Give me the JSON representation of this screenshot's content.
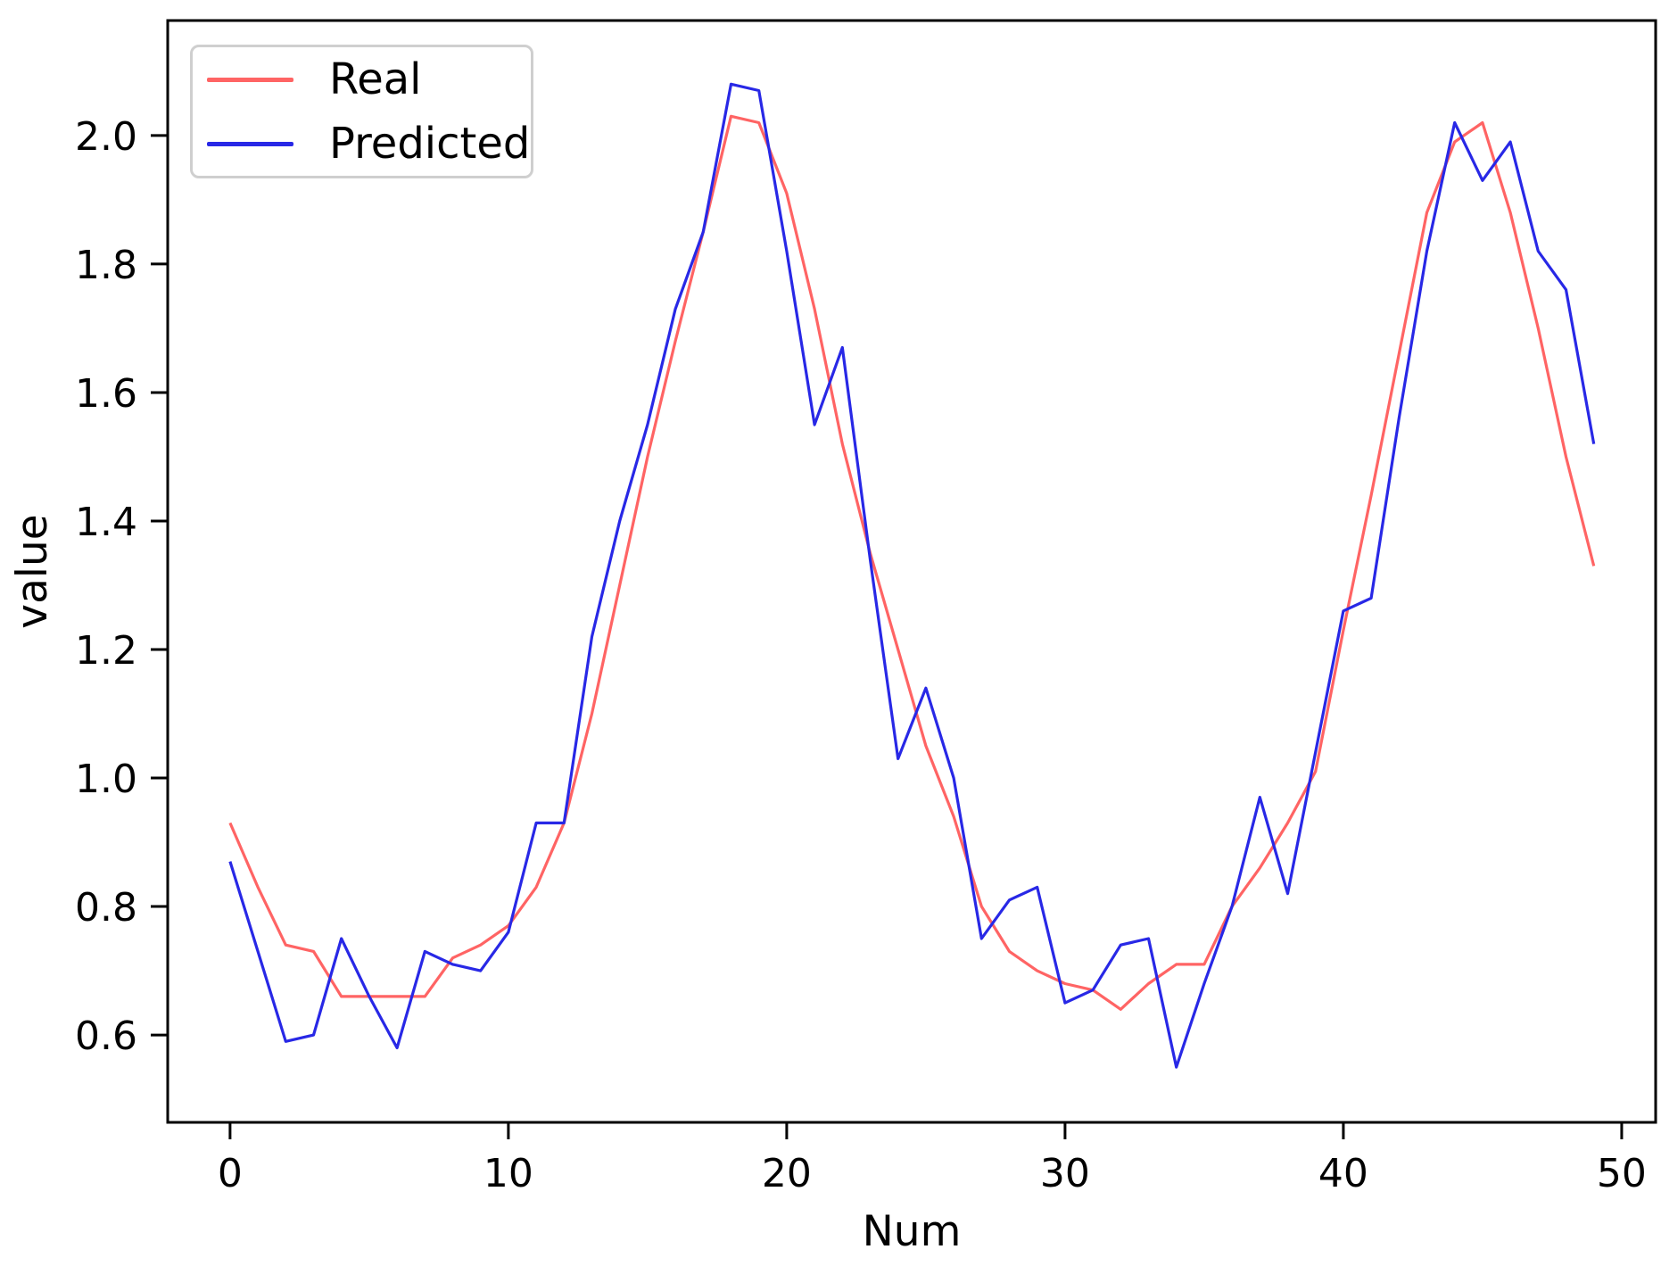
{
  "chart_data": {
    "type": "line",
    "title": "",
    "xlabel": "Num",
    "ylabel": "value",
    "x_ticks": [
      0,
      10,
      20,
      30,
      40,
      50
    ],
    "y_ticks": [
      0.6,
      0.8,
      1.0,
      1.2,
      1.4,
      1.6,
      1.8,
      2.0
    ],
    "xlim": [
      -2.24,
      51.22
    ],
    "ylim": [
      0.464,
      2.179
    ],
    "grid": false,
    "legend": {
      "position": "upper-left",
      "entries": [
        {
          "label": "Real",
          "color": "#ff6464"
        },
        {
          "label": "Predicted",
          "color": "#2828e6"
        }
      ]
    },
    "x": [
      0,
      1,
      2,
      3,
      4,
      5,
      6,
      7,
      8,
      9,
      10,
      11,
      12,
      13,
      14,
      15,
      16,
      17,
      18,
      19,
      20,
      21,
      22,
      23,
      24,
      25,
      26,
      27,
      28,
      29,
      30,
      31,
      32,
      33,
      34,
      35,
      36,
      37,
      38,
      39,
      40,
      41,
      42,
      43,
      44,
      45,
      46,
      47,
      48,
      49
    ],
    "series": [
      {
        "name": "Real",
        "color": "#ff6464",
        "values": [
          0.93,
          0.83,
          0.74,
          0.73,
          0.66,
          0.66,
          0.66,
          0.66,
          0.72,
          0.74,
          0.77,
          0.83,
          0.93,
          1.1,
          1.3,
          1.5,
          1.68,
          1.85,
          2.03,
          2.02,
          1.91,
          1.73,
          1.52,
          1.35,
          1.2,
          1.05,
          0.94,
          0.8,
          0.73,
          0.7,
          0.68,
          0.67,
          0.64,
          0.68,
          0.71,
          0.71,
          0.8,
          0.86,
          0.93,
          1.01,
          1.23,
          1.44,
          1.66,
          1.88,
          1.99,
          2.02,
          1.88,
          1.7,
          1.5,
          1.33
        ]
      },
      {
        "name": "Predicted",
        "color": "#2828e6",
        "values": [
          0.87,
          0.73,
          0.59,
          0.6,
          0.75,
          0.66,
          0.58,
          0.73,
          0.71,
          0.7,
          0.76,
          0.93,
          0.93,
          1.22,
          1.4,
          1.55,
          1.73,
          1.85,
          2.08,
          2.07,
          1.82,
          1.55,
          1.67,
          1.34,
          1.03,
          1.14,
          1.0,
          0.75,
          0.81,
          0.83,
          0.65,
          0.67,
          0.74,
          0.75,
          0.55,
          0.68,
          0.8,
          0.97,
          0.82,
          1.04,
          1.26,
          1.28,
          1.56,
          1.82,
          2.02,
          1.93,
          1.99,
          1.82,
          1.76,
          1.52
        ]
      }
    ]
  }
}
